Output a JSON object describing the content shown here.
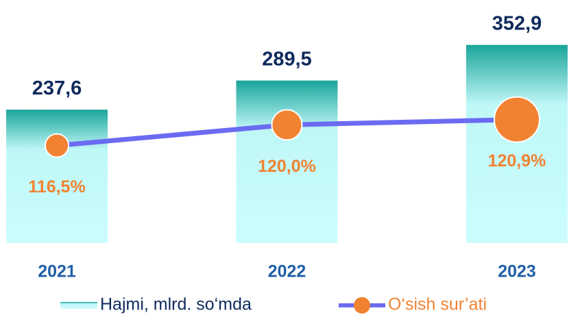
{
  "chart_data": {
    "type": "bar_line",
    "categories": [
      "2021",
      "2022",
      "2023"
    ],
    "series": [
      {
        "name": "Hajmi, mlrd. so‘mda",
        "type": "bar",
        "color": "#1aa59a",
        "values": [
          237.6,
          289.5,
          352.9
        ],
        "value_labels": [
          "237,6",
          "289,5",
          "352,9"
        ]
      },
      {
        "name": "O‘sish sur’ati",
        "type": "line",
        "axis": "y2",
        "color": "#6b6bf2",
        "marker_color": "#f08232",
        "values": [
          116.5,
          120.0,
          120.9
        ],
        "value_labels": [
          "116,5%",
          "120,0%",
          "120,9%"
        ]
      }
    ],
    "ylim": [
      0,
      400
    ],
    "y2lim": [
      100,
      138
    ],
    "grid": false,
    "legend": "bottom"
  }
}
